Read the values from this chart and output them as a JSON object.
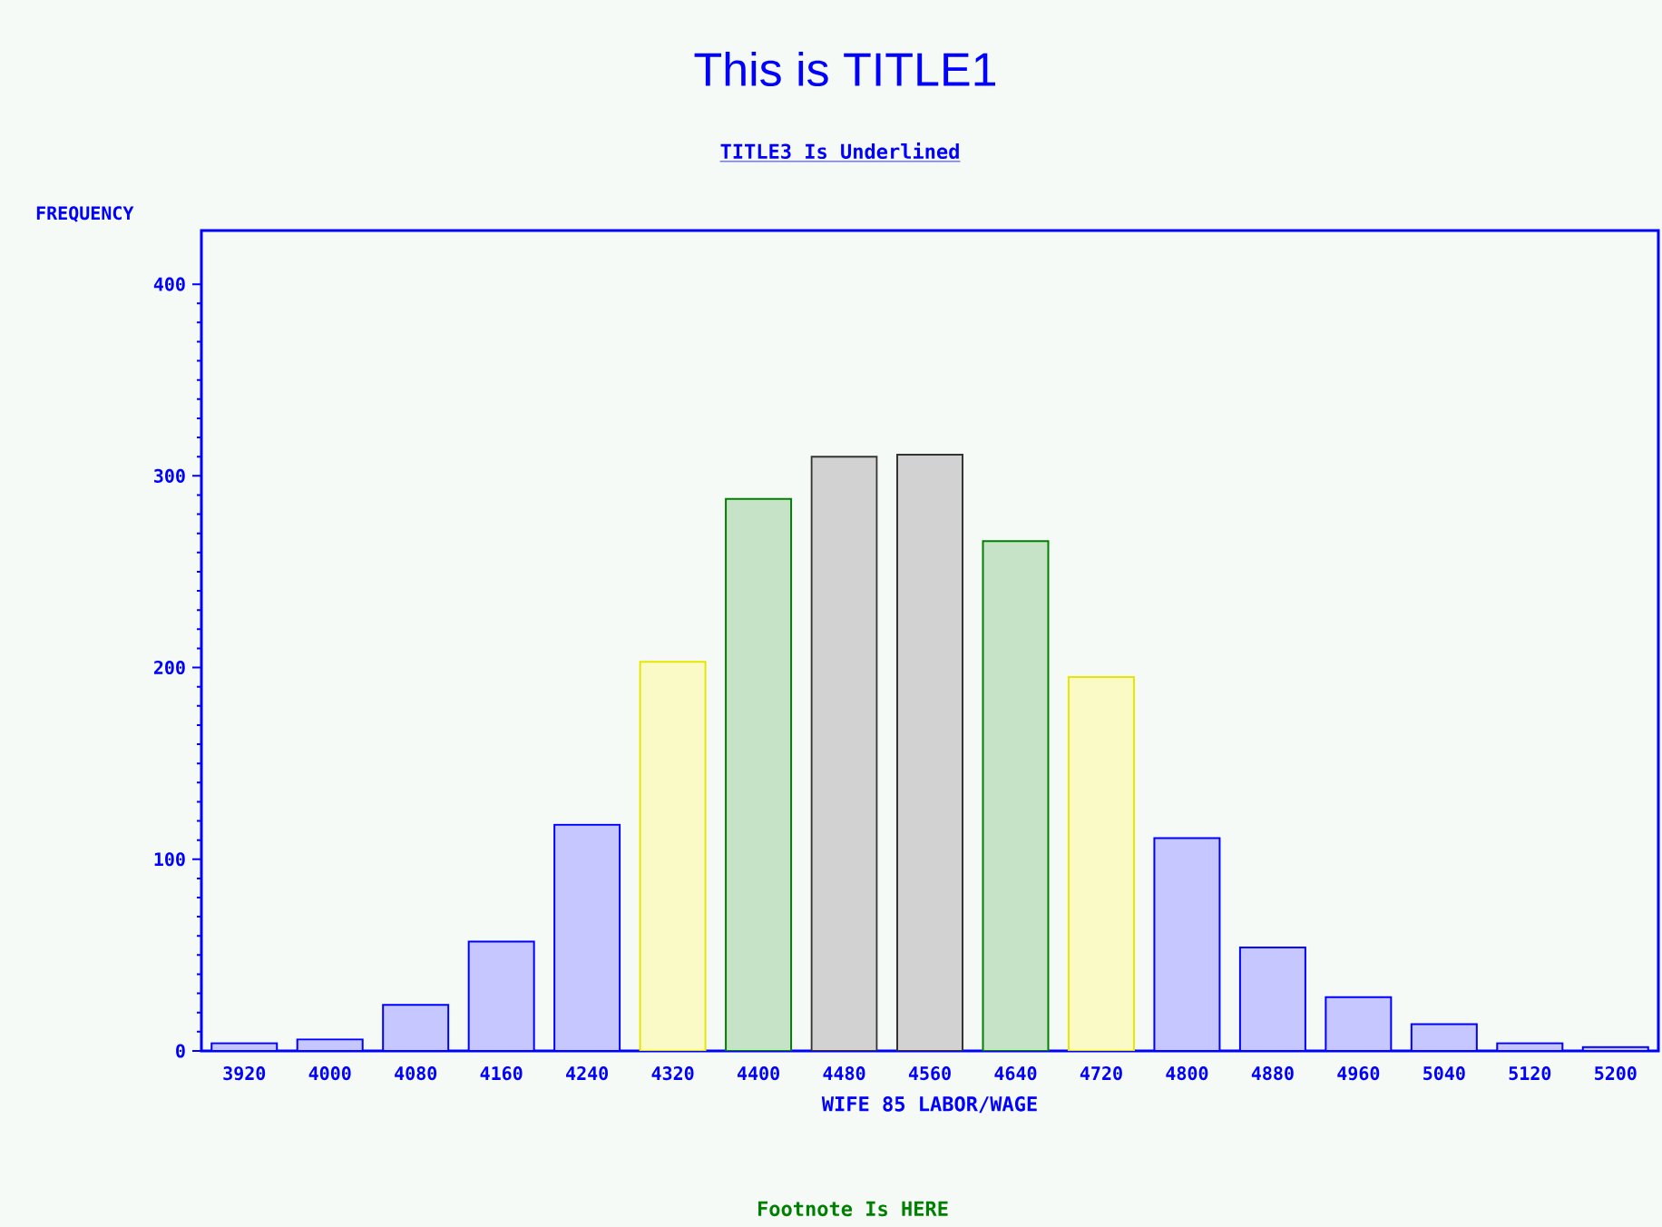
{
  "chart_data": {
    "type": "bar",
    "title": "This is TITLE1",
    "subtitle": "TITLE3 Is Underlined",
    "xlabel": "WIFE 85 LABOR/WAGE",
    "ylabel": "FREQUENCY",
    "annotations": [
      "Footnote Is HERE"
    ],
    "categories": [
      "3920",
      "4000",
      "4080",
      "4160",
      "4240",
      "4320",
      "4400",
      "4480",
      "4560",
      "4640",
      "4720",
      "4800",
      "4880",
      "4960",
      "5040",
      "5120",
      "5200"
    ],
    "values": [
      4,
      6,
      24,
      57,
      118,
      203,
      288,
      310,
      311,
      266,
      195,
      111,
      54,
      28,
      14,
      4,
      2
    ],
    "colors": [
      "#0000ff",
      "#0000ff",
      "#0000ff",
      "#0000ff",
      "#0000ff",
      "#e6e600",
      "#008000",
      "#333333",
      "#333333",
      "#008000",
      "#e6e600",
      "#0000ff",
      "#0000ff",
      "#0000ff",
      "#0000ff",
      "#0000ff",
      "#0000ff"
    ],
    "ylim": [
      0,
      400
    ],
    "yticks": [
      0,
      100,
      200,
      300,
      400
    ],
    "grid": false
  }
}
